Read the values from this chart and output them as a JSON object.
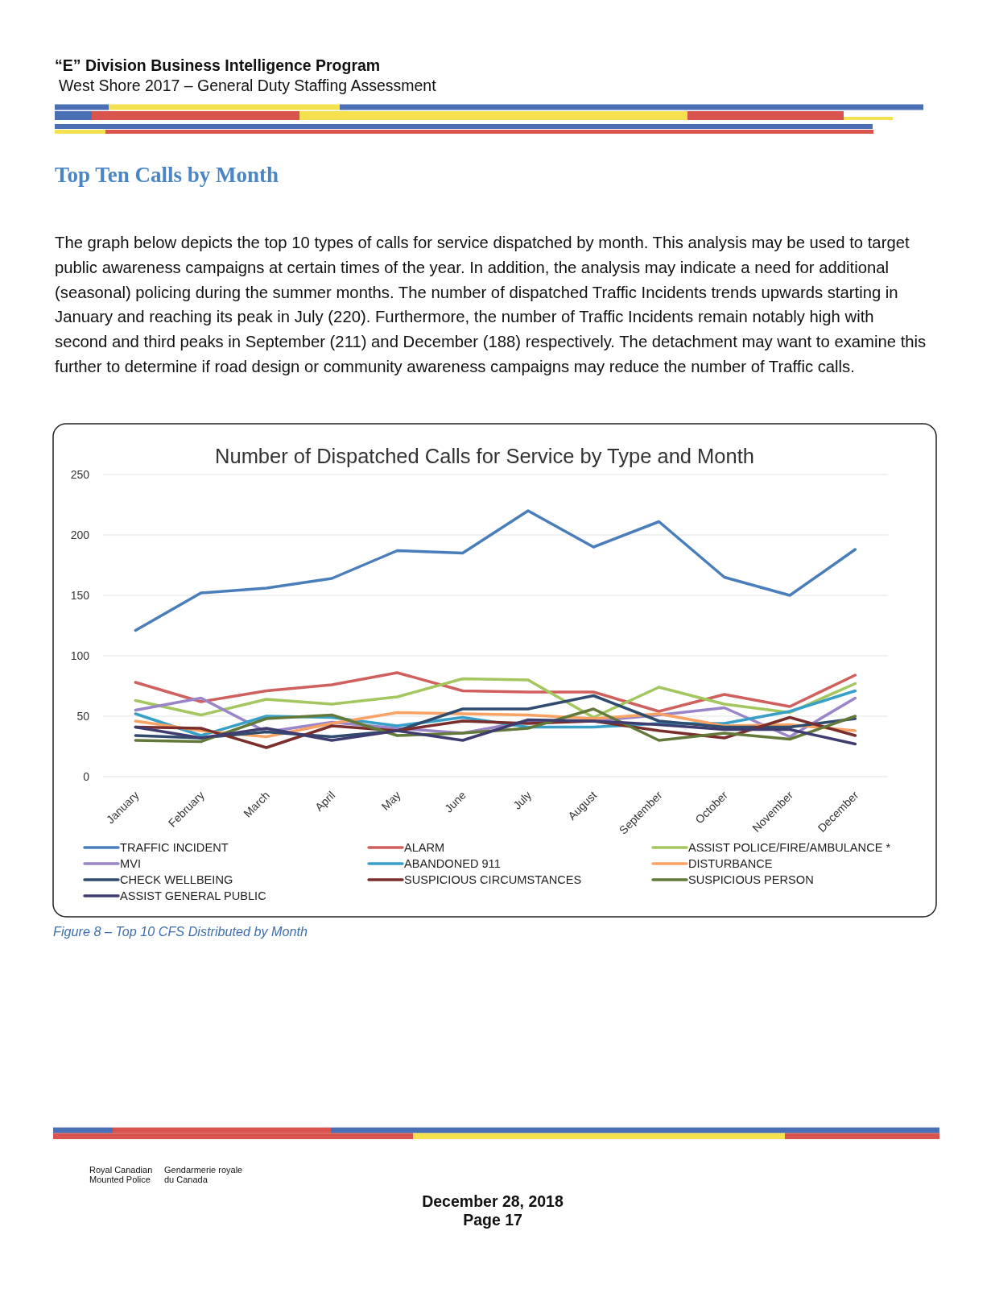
{
  "chart_data": {
    "type": "line",
    "title": "Number of Dispatched Calls for Service by Type and Month",
    "categories": [
      "January",
      "February",
      "March",
      "April",
      "May",
      "June",
      "July",
      "August",
      "September",
      "October",
      "November",
      "December"
    ],
    "series": [
      {
        "name": "TRAFFIC INCIDENT",
        "color": "#4a7ebb",
        "values": [
          121,
          152,
          156,
          164,
          187,
          185,
          220,
          190,
          211,
          165,
          150,
          188
        ]
      },
      {
        "name": "ALARM",
        "color": "#d0605d",
        "values": [
          78,
          62,
          71,
          76,
          86,
          71,
          70,
          70,
          54,
          68,
          58,
          84
        ]
      },
      {
        "name": "ASSIST POLICE/FIRE/AMBULANCE *",
        "color": "#a3c65f",
        "values": [
          63,
          51,
          64,
          60,
          66,
          81,
          80,
          49,
          74,
          60,
          53,
          77
        ]
      },
      {
        "name": "MVI",
        "color": "#9b85c9",
        "values": [
          55,
          65,
          37,
          45,
          40,
          36,
          46,
          46,
          51,
          57,
          33,
          65
        ]
      },
      {
        "name": "ABANDONED 911",
        "color": "#38a0c8",
        "values": [
          52,
          34,
          50,
          49,
          42,
          49,
          41,
          41,
          44,
          44,
          54,
          71
        ]
      },
      {
        "name": "DISTURBANCE",
        "color": "#f9a263",
        "values": [
          46,
          38,
          33,
          44,
          53,
          52,
          51,
          48,
          52,
          42,
          43,
          38
        ]
      },
      {
        "name": "CHECK WELLBEING",
        "color": "#2f4b6e",
        "values": [
          34,
          32,
          37,
          33,
          38,
          56,
          56,
          67,
          46,
          41,
          41,
          48
        ]
      },
      {
        "name": "SUSPICIOUS CIRCUMSTANCES",
        "color": "#7a2e2c",
        "values": [
          41,
          40,
          24,
          42,
          38,
          46,
          44,
          46,
          38,
          32,
          49,
          34
        ]
      },
      {
        "name": "SUSPICIOUS PERSON",
        "color": "#63793a",
        "values": [
          30,
          29,
          48,
          51,
          34,
          36,
          40,
          56,
          30,
          36,
          31,
          50
        ]
      },
      {
        "name": "ASSIST GENERAL PUBLIC",
        "color": "#3f3d70",
        "values": [
          41,
          32,
          40,
          30,
          38,
          30,
          47,
          46,
          43,
          39,
          39,
          27
        ]
      }
    ],
    "ylim": [
      0,
      250
    ],
    "yticks": [
      0,
      50,
      100,
      150,
      200,
      250
    ],
    "grid": "y",
    "legend": "bottom",
    "annotations": [
      "“E” Division Business Intelligence Program",
      "West Shore 2017 – General Duty Staffing Assessment",
      "Top Ten Calls by Month",
      "The graph below depicts the top 10 types of calls for service dispatched by month.  This analysis may be used to target\npublic awareness campaigns at certain times of the year.  In addition, the analysis may indicate a need for additional\n(seasonal) policing during the summer months. The number of dispatched Traffic Incidents trends upwards starting in\nJanuary and reaching its peak in July (220). Furthermore, the number of Traffic Incidents remain notably high with\nsecond and third peaks in September (211) and December (188) respectively. The detachment may want to examine this\nfurther to determine if road design or community awareness campaigns may reduce the number of Traffic calls.",
      "Figure 8 – Top 10 CFS Distributed by Month",
      "Royal Canadian\nMounted Police",
      "Gendarmerie royale\ndu Canada",
      "December 28, 2018",
      "Page 17"
    ]
  }
}
